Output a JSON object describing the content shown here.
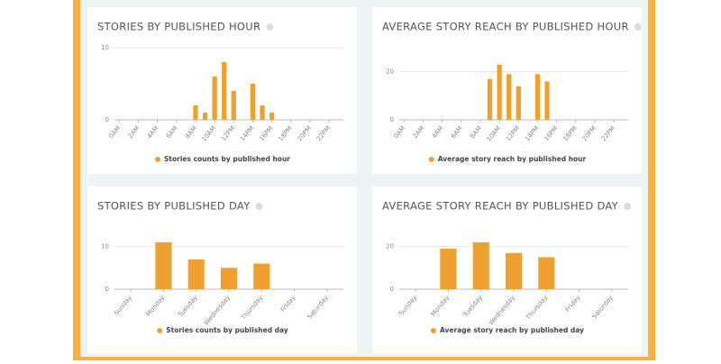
{
  "chart_data": [
    {
      "type": "bar",
      "title": "STORIES BY PUBLISHED HOUR",
      "categories": [
        "0AM",
        null,
        "2AM",
        null,
        "4AM",
        null,
        "6AM",
        null,
        "8AM",
        null,
        "10AM",
        null,
        "12PM",
        null,
        "14PM",
        null,
        "16PM",
        null,
        "18PM",
        null,
        "20PM",
        null,
        "22PM",
        null
      ],
      "series": [
        {
          "name": "Stories counts by published hour",
          "color": "#f0a030",
          "values": [
            0,
            0,
            0,
            0,
            0,
            0,
            0,
            0,
            2,
            1,
            6,
            8,
            4,
            0,
            5,
            2,
            1,
            0,
            0,
            0,
            0,
            0,
            0,
            0
          ]
        }
      ],
      "ylim": [
        0,
        10
      ],
      "yticks": [
        0,
        10
      ],
      "grid": true
    },
    {
      "type": "bar",
      "title": "AVERAGE STORY REACH BY PUBLISHED HOUR",
      "categories": [
        "0AM",
        null,
        "2AM",
        null,
        "4AM",
        null,
        "6AM",
        null,
        "8AM",
        null,
        "10AM",
        null,
        "12PM",
        null,
        "14PM",
        null,
        "16PM",
        null,
        "18PM",
        null,
        "20PM",
        null,
        "22PM",
        null
      ],
      "series": [
        {
          "name": "Average story reach by published hour",
          "color": "#f0a030",
          "values": [
            0,
            0,
            0,
            0,
            0,
            0,
            0,
            0,
            0,
            17,
            23,
            19,
            14,
            0,
            19,
            16,
            0,
            0,
            0,
            0,
            0,
            0,
            0,
            0
          ]
        }
      ],
      "ylim": [
        0,
        30
      ],
      "yticks": [
        0,
        20
      ],
      "grid": true
    },
    {
      "type": "bar",
      "title": "STORIES BY PUBLISHED DAY",
      "categories": [
        "Sunday",
        "Monday",
        "Tuesday",
        "Wednesday",
        "Thursday",
        "Friday",
        "Saturday"
      ],
      "series": [
        {
          "name": "Stories counts by published day",
          "color": "#f0a030",
          "values": [
            0,
            11,
            7,
            5,
            6,
            0,
            0
          ]
        }
      ],
      "ylim": [
        0,
        15
      ],
      "yticks": [
        0,
        10
      ],
      "grid": true
    },
    {
      "type": "bar",
      "title": "AVERAGE STORY REACH BY PUBLISHED DAY",
      "categories": [
        "Sunday",
        "Monday",
        "Tuesday",
        "Wednesday",
        "Thursday",
        "Friday",
        "Saturday"
      ],
      "series": [
        {
          "name": "Average story reach by published day",
          "color": "#f0a030",
          "values": [
            0,
            19,
            22,
            17,
            15,
            0,
            0
          ]
        }
      ],
      "ylim": [
        0,
        30
      ],
      "yticks": [
        0,
        20
      ],
      "grid": true
    }
  ]
}
